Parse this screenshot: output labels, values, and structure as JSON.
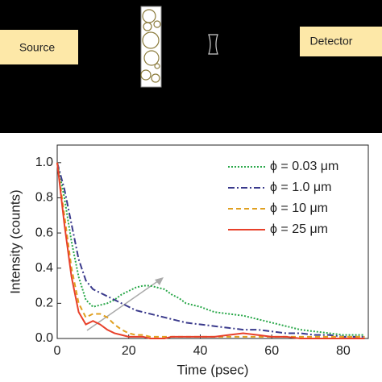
{
  "diagram": {
    "source": "Source",
    "detector": "Detector"
  },
  "chart_data": {
    "type": "line",
    "xlabel": "Time (psec)",
    "ylabel": "Intensity (counts)",
    "x": [
      0,
      2,
      4,
      6,
      8,
      10,
      12,
      14,
      16,
      18,
      20,
      22,
      24,
      26,
      28,
      30,
      32,
      34,
      36,
      40,
      44,
      48,
      52,
      56,
      60,
      64,
      68,
      72,
      76,
      80,
      86
    ],
    "series": [
      {
        "name": "ϕ = 0.03 μm",
        "color": "#2aa84a",
        "linestyle": "dotted",
        "values": [
          1.0,
          0.8,
          0.55,
          0.35,
          0.22,
          0.18,
          0.19,
          0.2,
          0.22,
          0.25,
          0.27,
          0.29,
          0.3,
          0.3,
          0.29,
          0.28,
          0.25,
          0.23,
          0.2,
          0.18,
          0.15,
          0.14,
          0.13,
          0.11,
          0.09,
          0.07,
          0.05,
          0.04,
          0.03,
          0.02,
          0.02
        ]
      },
      {
        "name": "ϕ = 1.0 μm",
        "color": "#3a3a8c",
        "linestyle": "dashdot",
        "values": [
          1.0,
          0.85,
          0.65,
          0.45,
          0.33,
          0.28,
          0.26,
          0.24,
          0.22,
          0.2,
          0.18,
          0.16,
          0.15,
          0.14,
          0.13,
          0.12,
          0.11,
          0.1,
          0.09,
          0.08,
          0.07,
          0.06,
          0.05,
          0.05,
          0.04,
          0.03,
          0.03,
          0.02,
          0.02,
          0.01,
          0.01
        ]
      },
      {
        "name": "ϕ = 10 μm",
        "color": "#e0a020",
        "linestyle": "dashed",
        "values": [
          1.0,
          0.7,
          0.4,
          0.2,
          0.12,
          0.14,
          0.14,
          0.12,
          0.08,
          0.05,
          0.03,
          0.02,
          0.02,
          0.01,
          0.01,
          0.01,
          0.01,
          0.01,
          0.01,
          0.01,
          0.01,
          0.01,
          0.01,
          0.01,
          0.01,
          0.01,
          0.01,
          0.01,
          0.01,
          0.01,
          0.01
        ]
      },
      {
        "name": "ϕ = 25 μm",
        "color": "#e8402a",
        "linestyle": "solid",
        "values": [
          1.0,
          0.65,
          0.35,
          0.15,
          0.08,
          0.1,
          0.08,
          0.05,
          0.03,
          0.02,
          0.01,
          0.01,
          0.01,
          0.0,
          0.0,
          0.0,
          0.01,
          0.01,
          0.01,
          0.01,
          0.01,
          0.02,
          0.03,
          0.02,
          0.01,
          0.01,
          0.0,
          0.0,
          0.0,
          0.0,
          0.0
        ]
      }
    ],
    "xlim": [
      0,
      87
    ],
    "xticks": [
      0,
      20,
      40,
      60,
      80
    ],
    "ylim": [
      0,
      1.1
    ],
    "yticks": [
      {
        "value": 0,
        "label": "0.0"
      },
      0.2,
      0.4,
      0.6,
      0.8,
      {
        "value": 1,
        "label": "1.0"
      }
    ],
    "legend": "upper right"
  }
}
